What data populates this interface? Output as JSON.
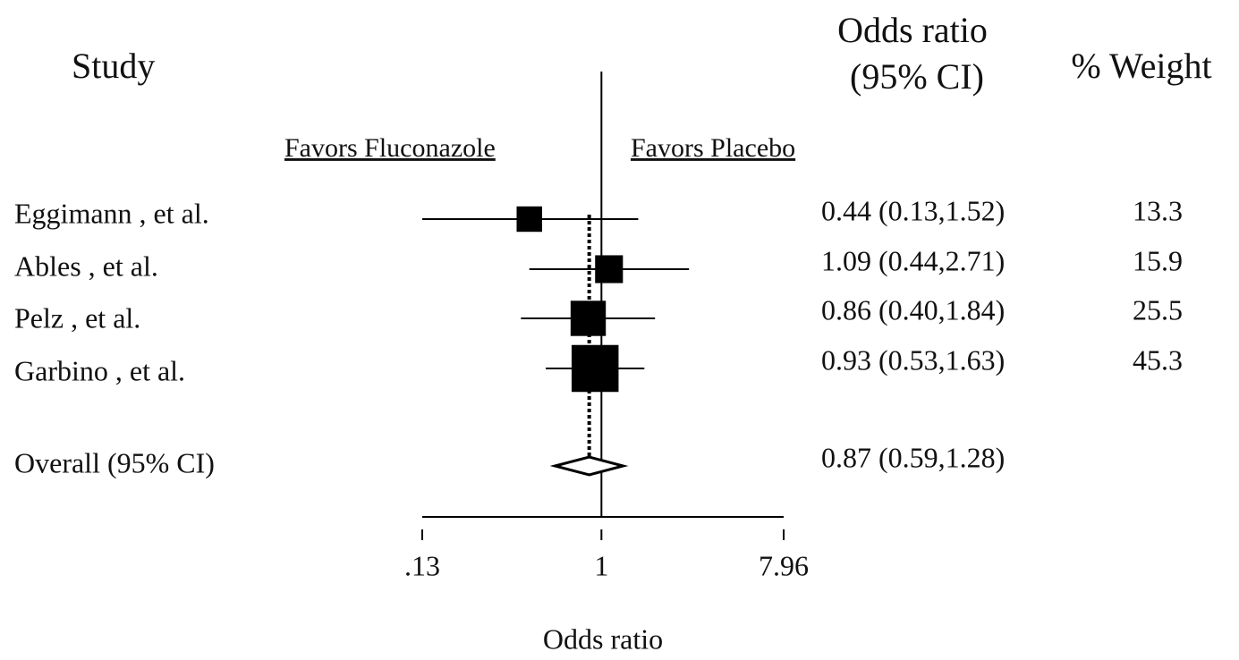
{
  "chart_data": {
    "type": "forest",
    "study_header": "Study",
    "ci_header": [
      "Odds ratio",
      "(95% CI)"
    ],
    "weight_header": "% Weight",
    "favors_left": "Favors Fluconazole",
    "favors_right": "Favors Placebo",
    "categories": [
      "Eggimann , et al.",
      "Ables , et al.",
      "Pelz , et al.",
      "Garbino , et al."
    ],
    "values": [
      0.44,
      1.09,
      0.86,
      0.93
    ],
    "lower": [
      0.13,
      0.44,
      0.4,
      0.53
    ],
    "upper": [
      1.52,
      2.71,
      1.84,
      1.63
    ],
    "value_labels": [
      "0.44 (0.13,1.52)",
      "1.09 (0.44,2.71)",
      "0.86 (0.40,1.84)",
      "0.93 (0.53,1.63)"
    ],
    "weights": [
      13.3,
      15.9,
      25.5,
      45.3
    ],
    "overall": {
      "label": "Overall (95% CI)",
      "value": 0.87,
      "lower": 0.59,
      "upper": 1.28,
      "value_label": "0.87 (0.59,1.28)"
    },
    "xlabel": "Odds ratio",
    "xlim": [
      0.13,
      7.96
    ],
    "xticks": [
      {
        "value": 0.13,
        "label": ".13"
      },
      1,
      7.96
    ],
    "log_x": true,
    "color": "#000000"
  }
}
